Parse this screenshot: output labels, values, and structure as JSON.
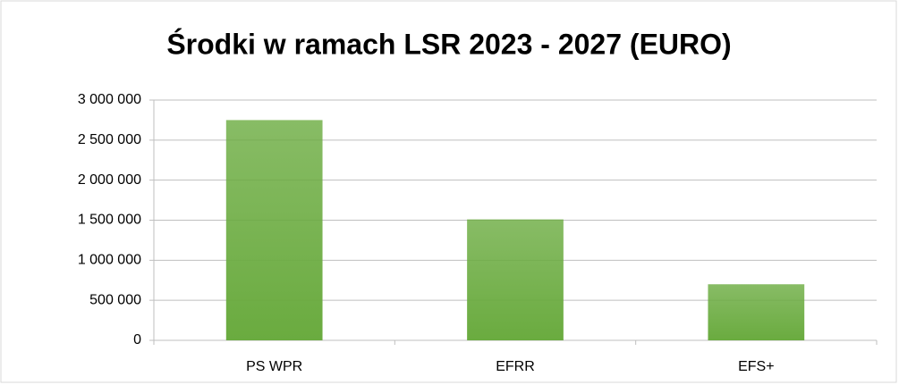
{
  "chart_data": {
    "type": "bar",
    "title": "Środki w ramach LSR 2023 - 2027 (EURO)",
    "categories": [
      "PS WPR",
      "EFRR",
      "EFS+"
    ],
    "values": [
      2750000,
      1510000,
      700000
    ],
    "color": "#6aab3f",
    "ylim": [
      0,
      3000000
    ],
    "yticks": [
      0,
      {
        "value": 500000,
        "label": "500 000"
      },
      {
        "value": 1000000,
        "label": "1 000 000"
      },
      {
        "value": 1500000,
        "label": "1 500 000"
      },
      {
        "value": 2000000,
        "label": "2 000 000"
      },
      {
        "value": 2500000,
        "label": "2 500 000"
      },
      {
        "value": 3000000,
        "label": "3 000 000"
      }
    ],
    "grid": true
  }
}
